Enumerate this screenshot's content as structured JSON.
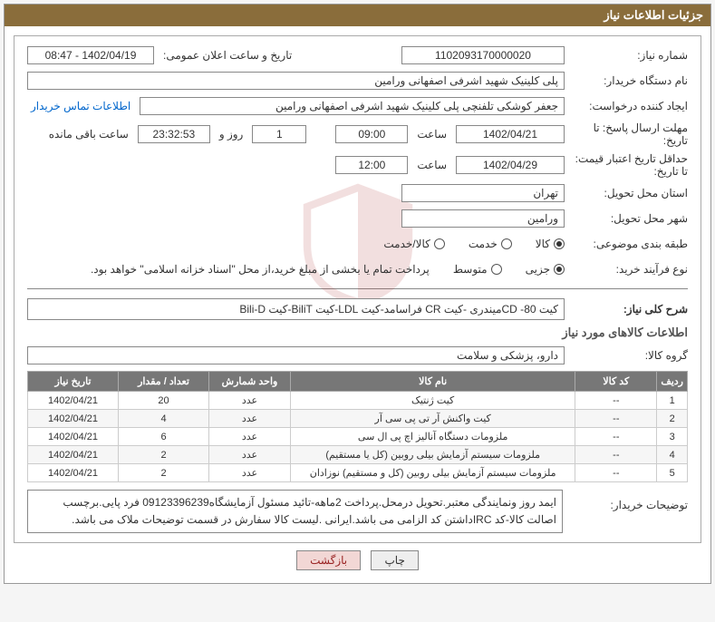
{
  "title": "جزئیات اطلاعات نیاز",
  "labels": {
    "need_no": "شماره نیاز:",
    "public_date": "تاریخ و ساعت اعلان عمومی:",
    "buyer_org": "نام دستگاه خریدار:",
    "requester": "ایجاد کننده درخواست:",
    "contact": "اطلاعات تماس خریدار",
    "deadline_from": "مهلت ارسال پاسخ: تا تاریخ:",
    "time": "ساعت",
    "days_and": "روز و",
    "remaining": "ساعت باقی مانده",
    "validity_from": "حداقل تاریخ اعتبار قیمت: تا تاریخ:",
    "province": "استان محل تحویل:",
    "city": "شهر محل تحویل:",
    "subject_cat": "طبقه بندی موضوعی:",
    "buy_type": "نوع فرآیند خرید:",
    "buy_note": "پرداخت تمام یا بخشی از مبلغ خرید،از محل \"اسناد خزانه اسلامی\" خواهد بود.",
    "need_summary": "شرح کلی نیاز:",
    "items_info": "اطلاعات کالاهای مورد نیاز",
    "goods_group": "گروه کالا:",
    "buyer_desc_label": "توضیحات خریدار:",
    "radio_goods": "کالا",
    "radio_service": "خدمت",
    "radio_goods_service": "کالا/خدمت",
    "radio_partial": "جزیی",
    "radio_medium": "متوسط",
    "btn_print": "چاپ",
    "btn_back": "بازگشت"
  },
  "fields": {
    "need_no": "1102093170000020",
    "public_date": "1402/04/19 - 08:47",
    "buyer_org": "پلی کلینیک شهید اشرفی اصفهانی   ورامین",
    "requester": "جعفر کوشکی تلفنچی پلی کلینیک شهید اشرفی اصفهانی   ورامین",
    "deadline_date": "1402/04/21",
    "deadline_time": "09:00",
    "days_remaining": "1",
    "hms_remaining": "23:32:53",
    "validity_date": "1402/04/29",
    "validity_time": "12:00",
    "province": "تهران",
    "city": "ورامین",
    "need_summary": "کیت 80- CDمیندری -کیت CR فراسامد-کیت LDL-کیت  BiliT-کیت Bili-D",
    "goods_group": "دارو، پزشکی و سلامت",
    "buyer_desc": "ایمد روز ونمایندگی معتبر.تحویل درمحل.پرداخت 2ماهه-تائید مسئول آزمایشگاه09123396239 فرد پایی.برچسب اصالت کالا-کد IRCداشتن کد الزامی می باشد.ایرانی .لیست کالا سفارش در قسمت توضیحات ملاک می باشد."
  },
  "table": {
    "headers": {
      "row": "ردیف",
      "code": "کد کالا",
      "name": "نام کالا",
      "unit": "واحد شمارش",
      "qty": "تعداد / مقدار",
      "date": "تاریخ نیاز"
    },
    "rows": [
      {
        "row": "1",
        "code": "--",
        "name": "کیت ژنتیک",
        "unit": "عدد",
        "qty": "20",
        "date": "1402/04/21"
      },
      {
        "row": "2",
        "code": "--",
        "name": "کیت واکنش آر تی پی سی آر",
        "unit": "عدد",
        "qty": "4",
        "date": "1402/04/21"
      },
      {
        "row": "3",
        "code": "--",
        "name": "ملزومات دستگاه آنالیز اچ پی ال سی",
        "unit": "عدد",
        "qty": "6",
        "date": "1402/04/21"
      },
      {
        "row": "4",
        "code": "--",
        "name": "ملزومات سیستم آزمایش بیلی روبین (کل یا مستقیم)",
        "unit": "عدد",
        "qty": "2",
        "date": "1402/04/21"
      },
      {
        "row": "5",
        "code": "--",
        "name": "ملزومات سیستم آزمایش بیلی روبین (کل و مستقیم) نوزادان",
        "unit": "عدد",
        "qty": "2",
        "date": "1402/04/21"
      }
    ]
  }
}
